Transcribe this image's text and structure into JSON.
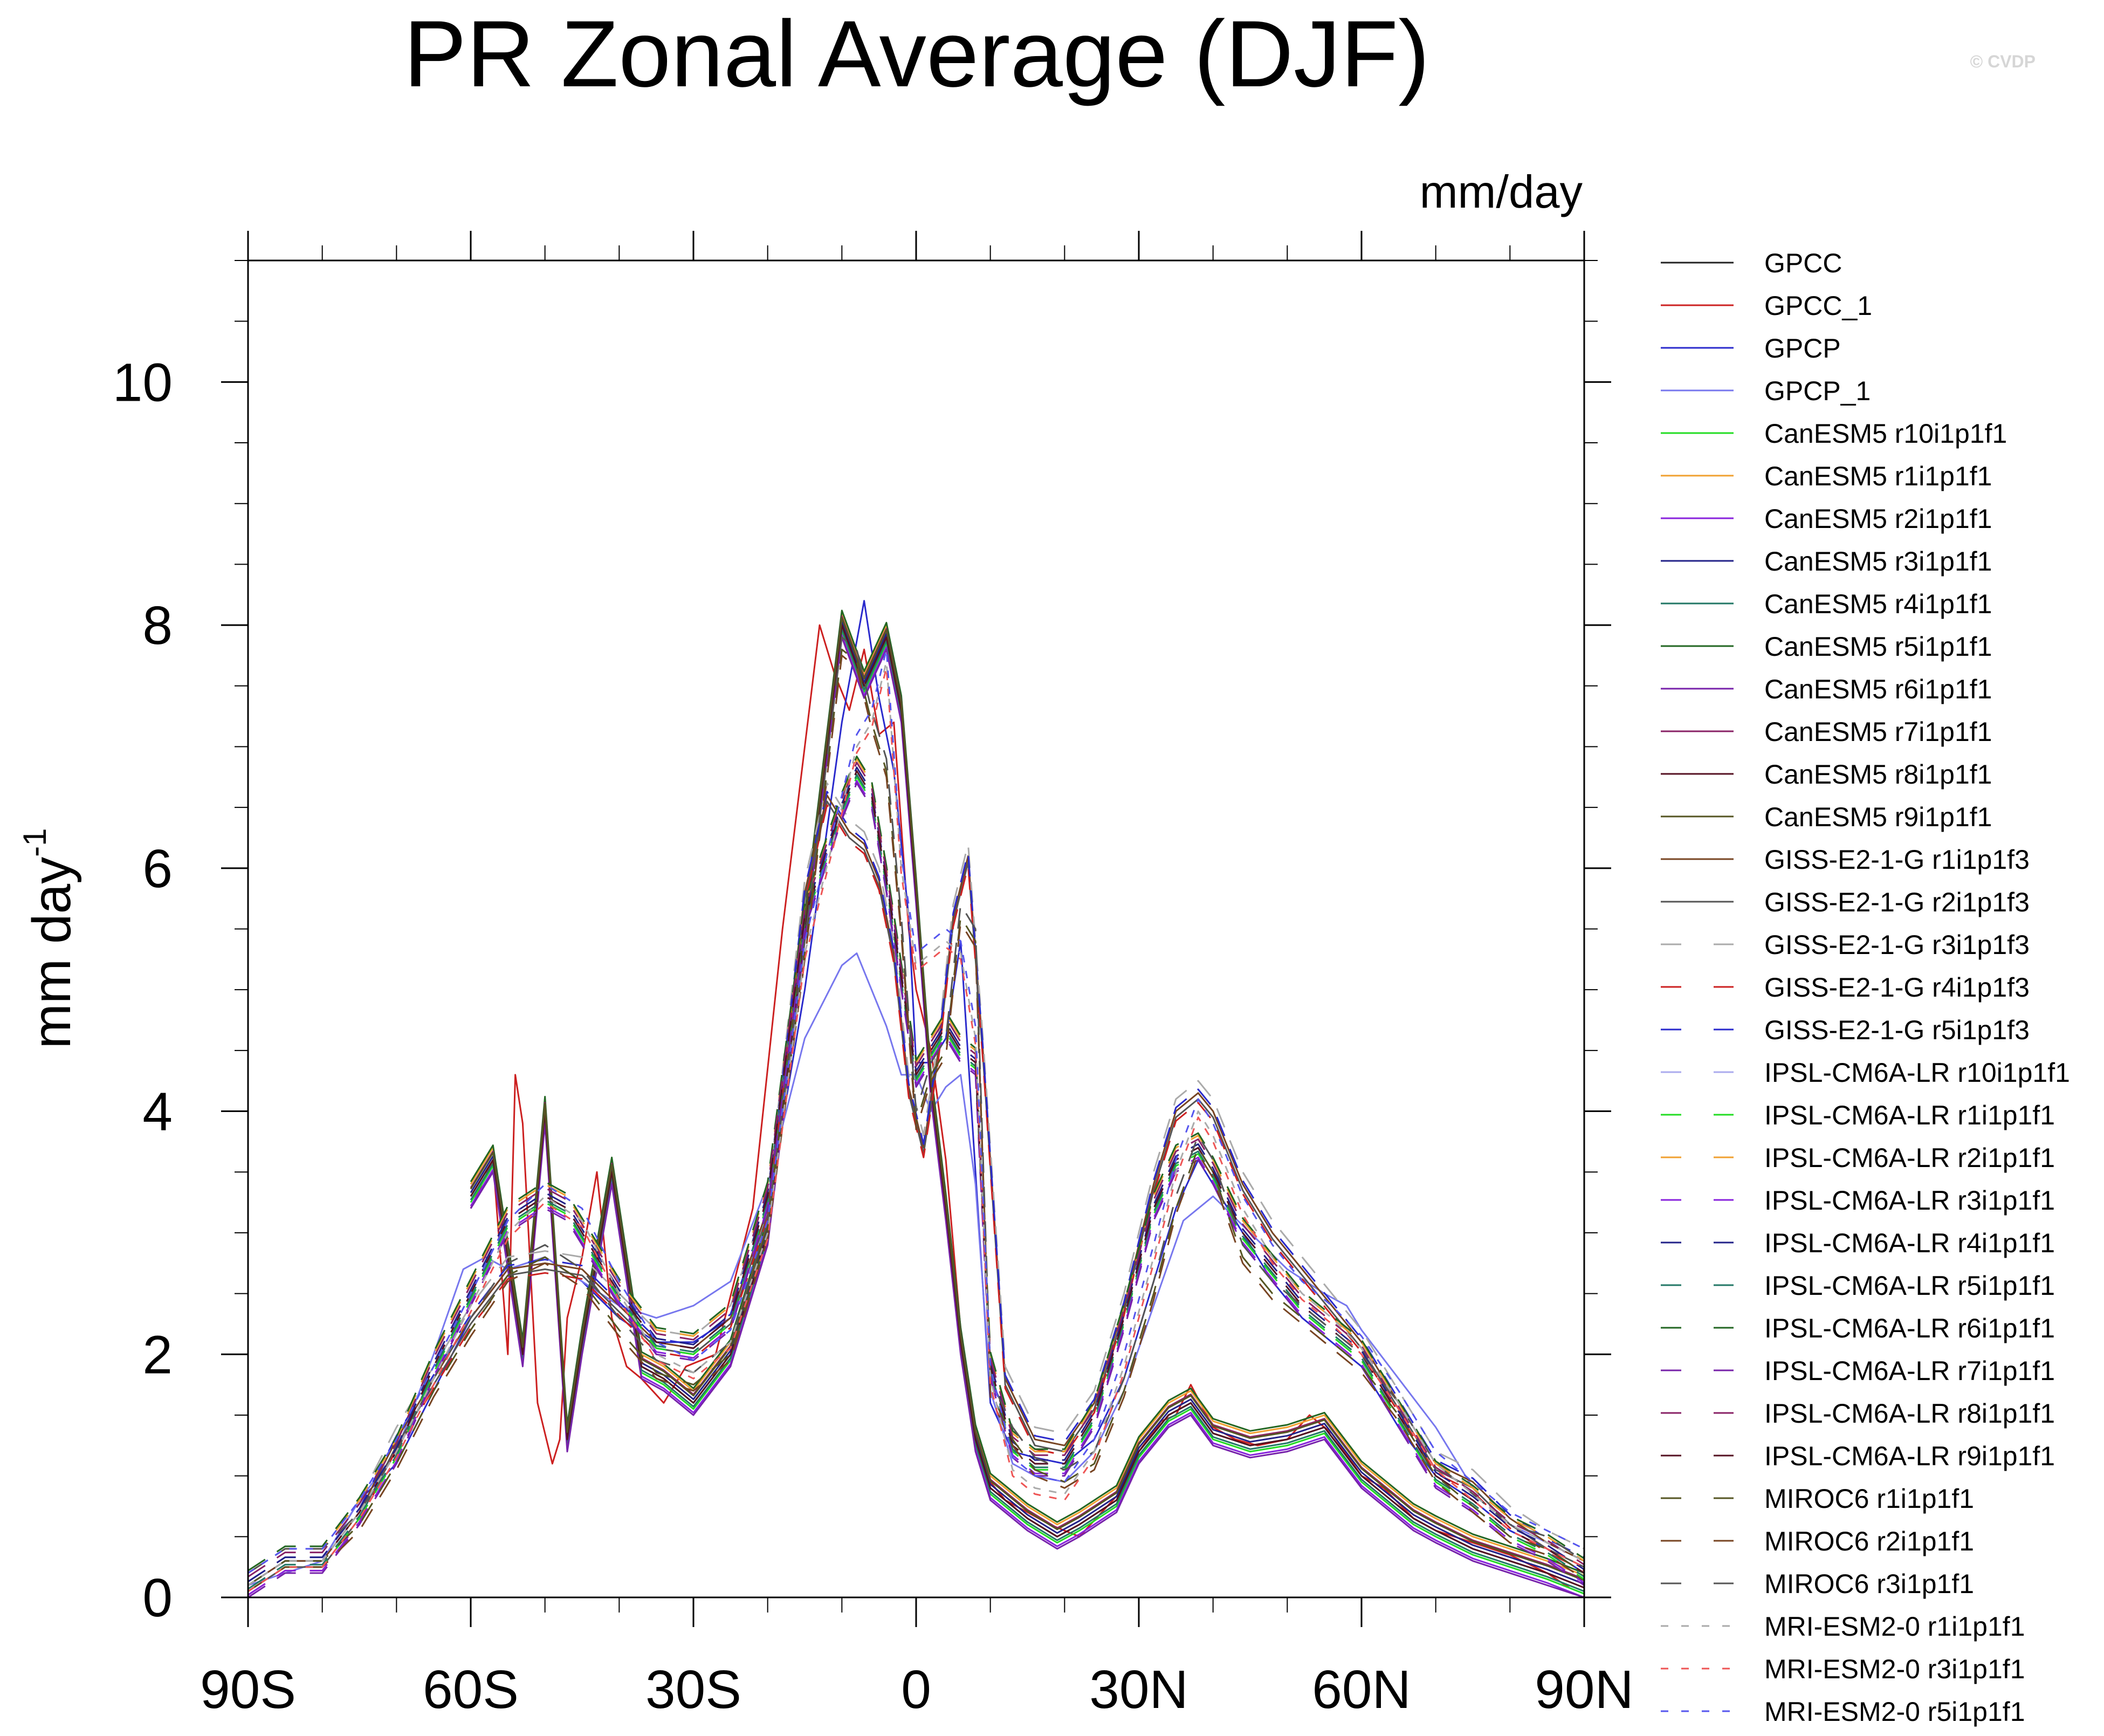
{
  "chart_data": {
    "type": "line",
    "title": "PR Zonal Average (DJF)",
    "units_label": "mm/day",
    "copyright": "© CVDP",
    "ylabel": "mm day",
    "ylabel_superscript": "-1",
    "xlim": [
      -90,
      90
    ],
    "ylim": [
      0,
      11
    ],
    "yticks": [
      0,
      2,
      4,
      6,
      8,
      10
    ],
    "ytick_labels": [
      "0",
      "2",
      "4",
      "6",
      "8",
      "10"
    ],
    "xticks": [
      -90,
      -60,
      -30,
      0,
      30,
      60,
      90
    ],
    "xtick_labels": [
      "90S",
      "60S",
      "30S",
      "0",
      "30N",
      "60N",
      "90N"
    ],
    "grid": false,
    "legend_position": "right",
    "series": [
      {
        "name": "GPCC",
        "color": "#222222",
        "dash": "solid",
        "group": "model_a",
        "x": [
          -60,
          -57,
          -53,
          -50,
          -47,
          -45,
          -41,
          -37,
          -34,
          -30,
          -25,
          -20,
          -15,
          -10,
          -7,
          -4,
          -2,
          0,
          2,
          4,
          6,
          8,
          10,
          12,
          15,
          19,
          22,
          27,
          30,
          34,
          37,
          40,
          45,
          50,
          55,
          60,
          63,
          67,
          70,
          75,
          80,
          85,
          90
        ],
        "y": [
          3.3,
          3.6,
          2.0,
          4.0,
          1.3,
          2.1,
          3.5,
          1.9,
          1.8,
          1.6,
          2.0,
          3.0,
          5.5,
          8.0,
          7.5,
          7.9,
          7.3,
          5.8,
          4.2,
          3.2,
          2.1,
          1.3,
          0.9,
          0.8,
          0.65,
          0.5,
          0.6,
          0.8,
          1.2,
          1.5,
          1.6,
          1.35,
          1.25,
          1.3,
          1.4,
          1.0,
          0.85,
          0.65,
          0.55,
          0.4,
          0.3,
          0.2,
          0.08
        ]
      },
      {
        "name": "GPCC_1",
        "color": "#cc2020",
        "dash": "solid",
        "group": "gpcc_red",
        "x": [
          -60,
          -57,
          -55,
          -54,
          -53,
          -51,
          -49,
          -48,
          -47,
          -45,
          -43,
          -41,
          -39,
          -37,
          -34,
          -31,
          -27,
          -22,
          -18,
          -15,
          -13,
          -11,
          -9,
          -7,
          -5,
          -3,
          -1,
          0,
          2,
          4,
          6,
          8,
          10,
          12,
          15,
          18,
          20,
          22,
          25,
          28,
          30,
          33,
          35,
          37,
          40,
          43,
          46,
          50,
          53,
          56,
          60,
          63,
          67,
          70,
          75,
          80,
          85,
          88
        ],
        "y": [
          3.2,
          3.6,
          2.0,
          4.3,
          3.9,
          1.6,
          1.1,
          1.3,
          2.3,
          2.8,
          3.5,
          2.3,
          1.9,
          1.8,
          1.6,
          1.9,
          2.0,
          3.2,
          5.5,
          7.0,
          8.0,
          7.6,
          7.3,
          7.8,
          7.1,
          7.2,
          5.5,
          5.0,
          4.5,
          3.6,
          2.2,
          1.3,
          0.95,
          0.8,
          0.7,
          0.6,
          0.55,
          0.5,
          0.7,
          0.9,
          1.2,
          1.45,
          1.5,
          1.75,
          1.4,
          1.3,
          1.25,
          1.3,
          1.5,
          1.35,
          1.0,
          0.9,
          0.65,
          0.55,
          0.45,
          0.35,
          0.2,
          0.08
        ]
      },
      {
        "name": "GPCP",
        "color": "#2a2acc",
        "dash": "solid",
        "group": "model_b",
        "x": [
          -90,
          -85,
          -80,
          -75,
          -70,
          -65,
          -60,
          -55,
          -50,
          -45,
          -40,
          -35,
          -30,
          -25,
          -20,
          -15,
          -10,
          -7,
          -5,
          -3,
          -1,
          0,
          2,
          4,
          6,
          8,
          10,
          13,
          16,
          20,
          24,
          28,
          32,
          35,
          38,
          40,
          44,
          48,
          52,
          56,
          60,
          65,
          70,
          75,
          80,
          85,
          90
        ],
        "y": [
          0.1,
          0.3,
          0.3,
          0.8,
          1.1,
          1.7,
          2.3,
          2.7,
          2.8,
          2.6,
          2.3,
          2.1,
          2.1,
          2.3,
          3.2,
          5.0,
          7.2,
          8.2,
          7.4,
          6.8,
          5.6,
          4.4,
          4.4,
          4.6,
          5.4,
          3.5,
          1.6,
          1.2,
          1.15,
          1.1,
          1.3,
          1.8,
          2.6,
          3.2,
          3.6,
          3.4,
          3.0,
          2.6,
          2.3,
          2.1,
          1.9,
          1.4,
          1.0,
          0.8,
          0.55,
          0.4,
          0.2
        ]
      },
      {
        "name": "GPCP_1",
        "color": "#7777ee",
        "dash": "solid",
        "group": "gpcp_light",
        "x": [
          -90,
          -85,
          -80,
          -75,
          -70,
          -65,
          -61,
          -58,
          -55,
          -50,
          -45,
          -40,
          -35,
          -30,
          -25,
          -20,
          -15,
          -10,
          -8,
          -6,
          -4,
          -2,
          0,
          2,
          4,
          6,
          8,
          10,
          13,
          16,
          20,
          24,
          28,
          32,
          36,
          40,
          45,
          50,
          55,
          58,
          60,
          65,
          70,
          75,
          80,
          85,
          90
        ],
        "y": [
          0.1,
          0.2,
          0.3,
          0.8,
          1.2,
          2.0,
          2.7,
          2.8,
          2.7,
          2.8,
          2.6,
          2.4,
          2.3,
          2.4,
          2.6,
          3.4,
          4.6,
          5.2,
          5.3,
          5.0,
          4.7,
          4.3,
          4.3,
          4.0,
          4.2,
          4.3,
          3.4,
          1.7,
          1.1,
          1.0,
          0.95,
          1.2,
          1.7,
          2.4,
          3.1,
          3.3,
          3.0,
          2.7,
          2.5,
          2.4,
          2.2,
          1.8,
          1.4,
          0.9,
          0.6,
          0.45,
          0.3
        ]
      },
      {
        "name": "CanESM5 r10i1p1f1",
        "color": "#22dd22",
        "dash": "solid",
        "group": "model_a",
        "x": [],
        "y": []
      },
      {
        "name": "CanESM5 r1i1p1f1",
        "color": "#f0a030",
        "dash": "solid",
        "group": "model_a",
        "x": [],
        "y": []
      },
      {
        "name": "CanESM5 r2i1p1f1",
        "color": "#8822dd",
        "dash": "solid",
        "group": "model_a",
        "x": [],
        "y": []
      },
      {
        "name": "CanESM5 r3i1p1f1",
        "color": "#222288",
        "dash": "solid",
        "group": "model_a",
        "x": [],
        "y": []
      },
      {
        "name": "CanESM5 r4i1p1f1",
        "color": "#227766",
        "dash": "solid",
        "group": "model_a",
        "x": [],
        "y": []
      },
      {
        "name": "CanESM5 r5i1p1f1",
        "color": "#226622",
        "dash": "solid",
        "group": "model_a",
        "x": [],
        "y": []
      },
      {
        "name": "CanESM5 r6i1p1f1",
        "color": "#7722aa",
        "dash": "solid",
        "group": "model_a",
        "x": [],
        "y": []
      },
      {
        "name": "CanESM5 r7i1p1f1",
        "color": "#882266",
        "dash": "solid",
        "group": "model_a",
        "x": [],
        "y": []
      },
      {
        "name": "CanESM5 r8i1p1f1",
        "color": "#551122",
        "dash": "solid",
        "group": "model_a",
        "x": [],
        "y": []
      },
      {
        "name": "CanESM5 r9i1p1f1",
        "color": "#555522",
        "dash": "solid",
        "group": "model_a",
        "x": [],
        "y": []
      },
      {
        "name": "GISS-E2-1-G r1i1p1f3",
        "color": "#774422",
        "dash": "solid",
        "group": "model_c",
        "x": [
          -90,
          -85,
          -80,
          -75,
          -70,
          -65,
          -60,
          -55,
          -50,
          -45,
          -40,
          -35,
          -30,
          -25,
          -20,
          -15,
          -12,
          -9,
          -7,
          -5,
          -3,
          -1,
          1,
          3,
          5,
          7,
          9,
          12,
          16,
          20,
          24,
          28,
          32,
          35,
          38,
          40,
          44,
          48,
          52,
          56,
          60,
          65,
          70,
          75,
          80,
          85,
          90
        ],
        "y": [
          0.1,
          0.3,
          0.3,
          0.7,
          1.3,
          1.8,
          2.3,
          2.7,
          2.75,
          2.7,
          2.4,
          2.1,
          2.05,
          2.3,
          3.2,
          5.8,
          6.6,
          6.3,
          6.2,
          5.9,
          5.3,
          4.2,
          3.7,
          4.5,
          5.6,
          6.1,
          4.5,
          1.8,
          1.3,
          1.25,
          1.6,
          2.4,
          3.4,
          4.0,
          4.15,
          4.0,
          3.4,
          3.0,
          2.7,
          2.4,
          2.1,
          1.6,
          1.1,
          0.95,
          0.65,
          0.45,
          0.3
        ]
      },
      {
        "name": "GISS-E2-1-G r2i1p1f3",
        "color": "#555555",
        "dash": "solid",
        "group": "model_c",
        "x": [],
        "y": []
      },
      {
        "name": "GISS-E2-1-G r3i1p1f3",
        "color": "#aaaaaa",
        "dash": "longdash",
        "group": "model_c",
        "x": [],
        "y": []
      },
      {
        "name": "GISS-E2-1-G r4i1p1f3",
        "color": "#cc2020",
        "dash": "longdash",
        "group": "model_c",
        "x": [],
        "y": []
      },
      {
        "name": "GISS-E2-1-G r5i1p1f3",
        "color": "#2a2acc",
        "dash": "longdash",
        "group": "model_c",
        "x": [],
        "y": []
      },
      {
        "name": "IPSL-CM6A-LR r10i1p1f1",
        "color": "#aaaaee",
        "dash": "longdash",
        "group": "model_d",
        "x": [
          -90,
          -85,
          -80,
          -75,
          -70,
          -65,
          -60,
          -55,
          -50,
          -47,
          -45,
          -40,
          -35,
          -30,
          -25,
          -20,
          -15,
          -10,
          -8,
          -6,
          -4,
          -2,
          0,
          2,
          4,
          6,
          8,
          10,
          13,
          16,
          20,
          24,
          28,
          32,
          35,
          38,
          40,
          44,
          48,
          52,
          56,
          60,
          65,
          70,
          75,
          80,
          85,
          90
        ],
        "y": [
          0.1,
          0.3,
          0.3,
          0.7,
          1.2,
          1.9,
          2.5,
          3.1,
          3.3,
          3.2,
          3.0,
          2.5,
          2.1,
          2.05,
          2.3,
          3.3,
          5.6,
          6.5,
          6.8,
          6.6,
          5.9,
          5.1,
          4.3,
          4.5,
          4.7,
          4.5,
          4.4,
          1.9,
          1.25,
          1.1,
          1.1,
          1.5,
          2.3,
          3.2,
          3.6,
          3.7,
          3.5,
          3.0,
          2.7,
          2.4,
          2.2,
          2.0,
          1.5,
          1.0,
          0.8,
          0.55,
          0.4,
          0.2
        ]
      },
      {
        "name": "IPSL-CM6A-LR r1i1p1f1",
        "color": "#22dd22",
        "dash": "longdash",
        "group": "model_d",
        "x": [],
        "y": []
      },
      {
        "name": "IPSL-CM6A-LR r2i1p1f1",
        "color": "#f0a030",
        "dash": "longdash",
        "group": "model_d",
        "x": [],
        "y": []
      },
      {
        "name": "IPSL-CM6A-LR r3i1p1f1",
        "color": "#8822dd",
        "dash": "longdash",
        "group": "model_d",
        "x": [],
        "y": []
      },
      {
        "name": "IPSL-CM6A-LR r4i1p1f1",
        "color": "#222288",
        "dash": "longdash",
        "group": "model_d",
        "x": [],
        "y": []
      },
      {
        "name": "IPSL-CM6A-LR r5i1p1f1",
        "color": "#227766",
        "dash": "longdash",
        "group": "model_d",
        "x": [],
        "y": []
      },
      {
        "name": "IPSL-CM6A-LR r6i1p1f1",
        "color": "#226622",
        "dash": "longdash",
        "group": "model_d",
        "x": [],
        "y": []
      },
      {
        "name": "IPSL-CM6A-LR r7i1p1f1",
        "color": "#7722aa",
        "dash": "longdash",
        "group": "model_d",
        "x": [],
        "y": []
      },
      {
        "name": "IPSL-CM6A-LR r8i1p1f1",
        "color": "#882266",
        "dash": "longdash",
        "group": "model_d",
        "x": [],
        "y": []
      },
      {
        "name": "IPSL-CM6A-LR r9i1p1f1",
        "color": "#551122",
        "dash": "longdash",
        "group": "model_d",
        "x": [],
        "y": []
      },
      {
        "name": "MIROC6 r1i1p1f1",
        "color": "#555522",
        "dash": "longdash",
        "group": "model_e",
        "x": [
          -90,
          -85,
          -80,
          -75,
          -70,
          -65,
          -60,
          -55,
          -50,
          -45,
          -40,
          -35,
          -30,
          -25,
          -20,
          -15,
          -10,
          -8,
          -6,
          -4,
          -2,
          0,
          2,
          4,
          6,
          8,
          10,
          13,
          16,
          20,
          24,
          28,
          32,
          35,
          38,
          40,
          44,
          48,
          52,
          56,
          60,
          65,
          70,
          75,
          80,
          85,
          90
        ],
        "y": [
          0.1,
          0.3,
          0.3,
          0.6,
          1.1,
          1.7,
          2.2,
          2.65,
          2.8,
          2.6,
          2.2,
          1.85,
          1.75,
          2.0,
          3.0,
          5.3,
          7.8,
          7.7,
          7.2,
          6.8,
          5.5,
          3.9,
          4.3,
          4.5,
          5.6,
          5.4,
          1.7,
          1.3,
          1.05,
          0.95,
          1.1,
          1.7,
          2.5,
          3.2,
          3.7,
          3.5,
          2.8,
          2.5,
          2.3,
          2.1,
          1.9,
          1.5,
          1.0,
          0.75,
          0.5,
          0.4,
          0.2
        ]
      },
      {
        "name": "MIROC6 r2i1p1f1",
        "color": "#774422",
        "dash": "longdash",
        "group": "model_e",
        "x": [],
        "y": []
      },
      {
        "name": "MIROC6 r3i1p1f1",
        "color": "#555555",
        "dash": "longdash",
        "group": "model_e",
        "x": [],
        "y": []
      },
      {
        "name": "MRI-ESM2-0 r1i1p1f1",
        "color": "#aaaaaa",
        "dash": "shortdash",
        "group": "model_f",
        "x": [
          -90,
          -85,
          -80,
          -75,
          -70,
          -65,
          -60,
          -55,
          -50,
          -45,
          -40,
          -35,
          -30,
          -25,
          -20,
          -15,
          -10,
          -8,
          -6,
          -4,
          -2,
          0,
          2,
          4,
          6,
          8,
          10,
          13,
          16,
          20,
          24,
          28,
          32,
          35,
          38,
          40,
          44,
          48,
          52,
          56,
          60,
          65,
          70,
          75,
          80,
          85,
          90
        ],
        "y": [
          0.1,
          0.3,
          0.3,
          0.7,
          1.2,
          1.8,
          2.4,
          3.0,
          3.3,
          3.1,
          2.5,
          2.0,
          1.85,
          2.1,
          3.0,
          5.3,
          6.5,
          7.0,
          7.2,
          7.7,
          6.0,
          5.2,
          5.3,
          5.4,
          5.3,
          4.6,
          1.8,
          1.05,
          0.9,
          0.85,
          1.2,
          1.9,
          2.8,
          3.5,
          4.0,
          3.8,
          3.2,
          2.8,
          2.5,
          2.3,
          2.05,
          1.6,
          1.1,
          0.85,
          0.6,
          0.45,
          0.3
        ]
      },
      {
        "name": "MRI-ESM2-0 r3i1p1f1",
        "color": "#ee5555",
        "dash": "shortdash",
        "group": "model_f",
        "x": [],
        "y": []
      },
      {
        "name": "MRI-ESM2-0 r5i1p1f1",
        "color": "#5555ee",
        "dash": "shortdash",
        "group": "model_f",
        "x": [],
        "y": []
      }
    ]
  }
}
